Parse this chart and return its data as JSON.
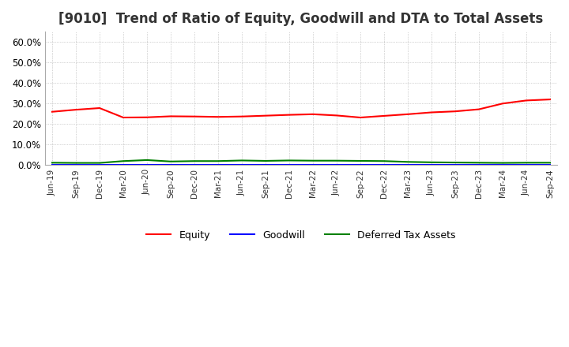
{
  "title": "[9010]  Trend of Ratio of Equity, Goodwill and DTA to Total Assets",
  "x_labels": [
    "Jun-19",
    "Sep-19",
    "Dec-19",
    "Mar-20",
    "Jun-20",
    "Sep-20",
    "Dec-20",
    "Mar-21",
    "Jun-21",
    "Sep-21",
    "Dec-21",
    "Mar-22",
    "Jun-22",
    "Sep-22",
    "Dec-22",
    "Mar-23",
    "Jun-23",
    "Sep-23",
    "Dec-23",
    "Mar-24",
    "Jun-24",
    "Sep-24"
  ],
  "equity": [
    0.26,
    0.27,
    0.278,
    0.232,
    0.233,
    0.238,
    0.237,
    0.235,
    0.237,
    0.241,
    0.245,
    0.248,
    0.242,
    0.232,
    0.24,
    0.248,
    0.257,
    0.262,
    0.272,
    0.3,
    0.315,
    0.32
  ],
  "goodwill": [
    0.001,
    0.001,
    0.001,
    0.001,
    0.001,
    0.001,
    0.001,
    0.001,
    0.001,
    0.001,
    0.001,
    0.001,
    0.001,
    0.001,
    0.001,
    0.001,
    0.001,
    0.001,
    0.001,
    0.001,
    0.001,
    0.001
  ],
  "dta": [
    0.012,
    0.011,
    0.011,
    0.02,
    0.025,
    0.018,
    0.02,
    0.02,
    0.023,
    0.021,
    0.023,
    0.022,
    0.022,
    0.021,
    0.02,
    0.016,
    0.014,
    0.013,
    0.012,
    0.011,
    0.012,
    0.012
  ],
  "equity_color": "#FF0000",
  "goodwill_color": "#0000FF",
  "dta_color": "#008000",
  "ylim": [
    0.0,
    0.65
  ],
  "yticks": [
    0.0,
    0.1,
    0.2,
    0.3,
    0.4,
    0.5,
    0.6
  ],
  "background_color": "#FFFFFF",
  "grid_color": "#AAAAAA",
  "title_fontsize": 12
}
